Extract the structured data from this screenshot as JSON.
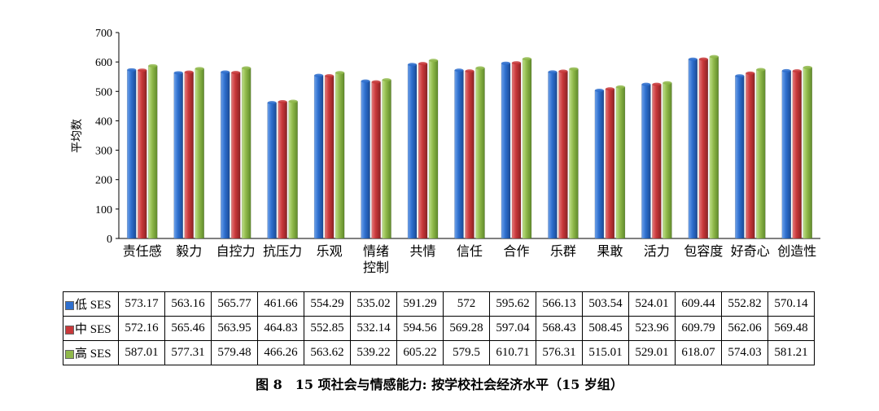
{
  "chart_data": {
    "type": "bar",
    "ylabel": "平均数",
    "ylim": [
      0,
      700
    ],
    "yticks": [
      "0",
      "100",
      "200",
      "300",
      "400",
      "500",
      "600",
      "700"
    ],
    "categories": [
      "责任感",
      "毅力",
      "自控力",
      "抗压力",
      "乐观",
      "情绪控制",
      "共情",
      "信任",
      "合作",
      "乐群",
      "果敢",
      "活力",
      "包容度",
      "好奇心",
      "创造性"
    ],
    "category_lines": [
      [
        "责任感"
      ],
      [
        "毅力"
      ],
      [
        "自控力"
      ],
      [
        "抗压力"
      ],
      [
        "乐观"
      ],
      [
        "情绪",
        "控制"
      ],
      [
        "共情"
      ],
      [
        "信任"
      ],
      [
        "合作"
      ],
      [
        "乐群"
      ],
      [
        "果敢"
      ],
      [
        "活力"
      ],
      [
        "包容度"
      ],
      [
        "好奇心"
      ],
      [
        "创造性"
      ]
    ],
    "series": [
      {
        "name": "低 SES",
        "color": "#2e6fce",
        "values": [
          573.17,
          563.16,
          565.77,
          461.66,
          554.29,
          535.02,
          591.29,
          572,
          595.62,
          566.13,
          503.54,
          524.01,
          609.44,
          552.82,
          570.14
        ]
      },
      {
        "name": "中 SES",
        "color": "#c8383a",
        "values": [
          572.16,
          565.46,
          563.95,
          464.83,
          552.85,
          532.14,
          594.56,
          569.28,
          597.04,
          568.43,
          508.45,
          523.96,
          609.79,
          562.06,
          569.48
        ]
      },
      {
        "name": "高 SES",
        "color": "#8fb84a",
        "values": [
          587.01,
          577.31,
          579.48,
          466.26,
          563.62,
          539.22,
          605.22,
          579.5,
          610.71,
          576.31,
          515.01,
          529.01,
          618.07,
          574.03,
          581.21
        ]
      }
    ],
    "table": [
      [
        "573.17",
        "563.16",
        "565.77",
        "461.66",
        "554.29",
        "535.02",
        "591.29",
        "572",
        "595.62",
        "566.13",
        "503.54",
        "524.01",
        "609.44",
        "552.82",
        "570.14"
      ],
      [
        "572.16",
        "565.46",
        "563.95",
        "464.83",
        "552.85",
        "532.14",
        "594.56",
        "569.28",
        "597.04",
        "568.43",
        "508.45",
        "523.96",
        "609.79",
        "562.06",
        "569.48"
      ],
      [
        "587.01",
        "577.31",
        "579.48",
        "466.26",
        "563.62",
        "539.22",
        "605.22",
        "579.5",
        "610.71",
        "576.31",
        "515.01",
        "529.01",
        "618.07",
        "574.03",
        "581.21"
      ]
    ],
    "grid": false,
    "legend": "table"
  },
  "caption": "图 8　15 项社会与情感能力: 按学校社会经济水平（15 岁组）"
}
